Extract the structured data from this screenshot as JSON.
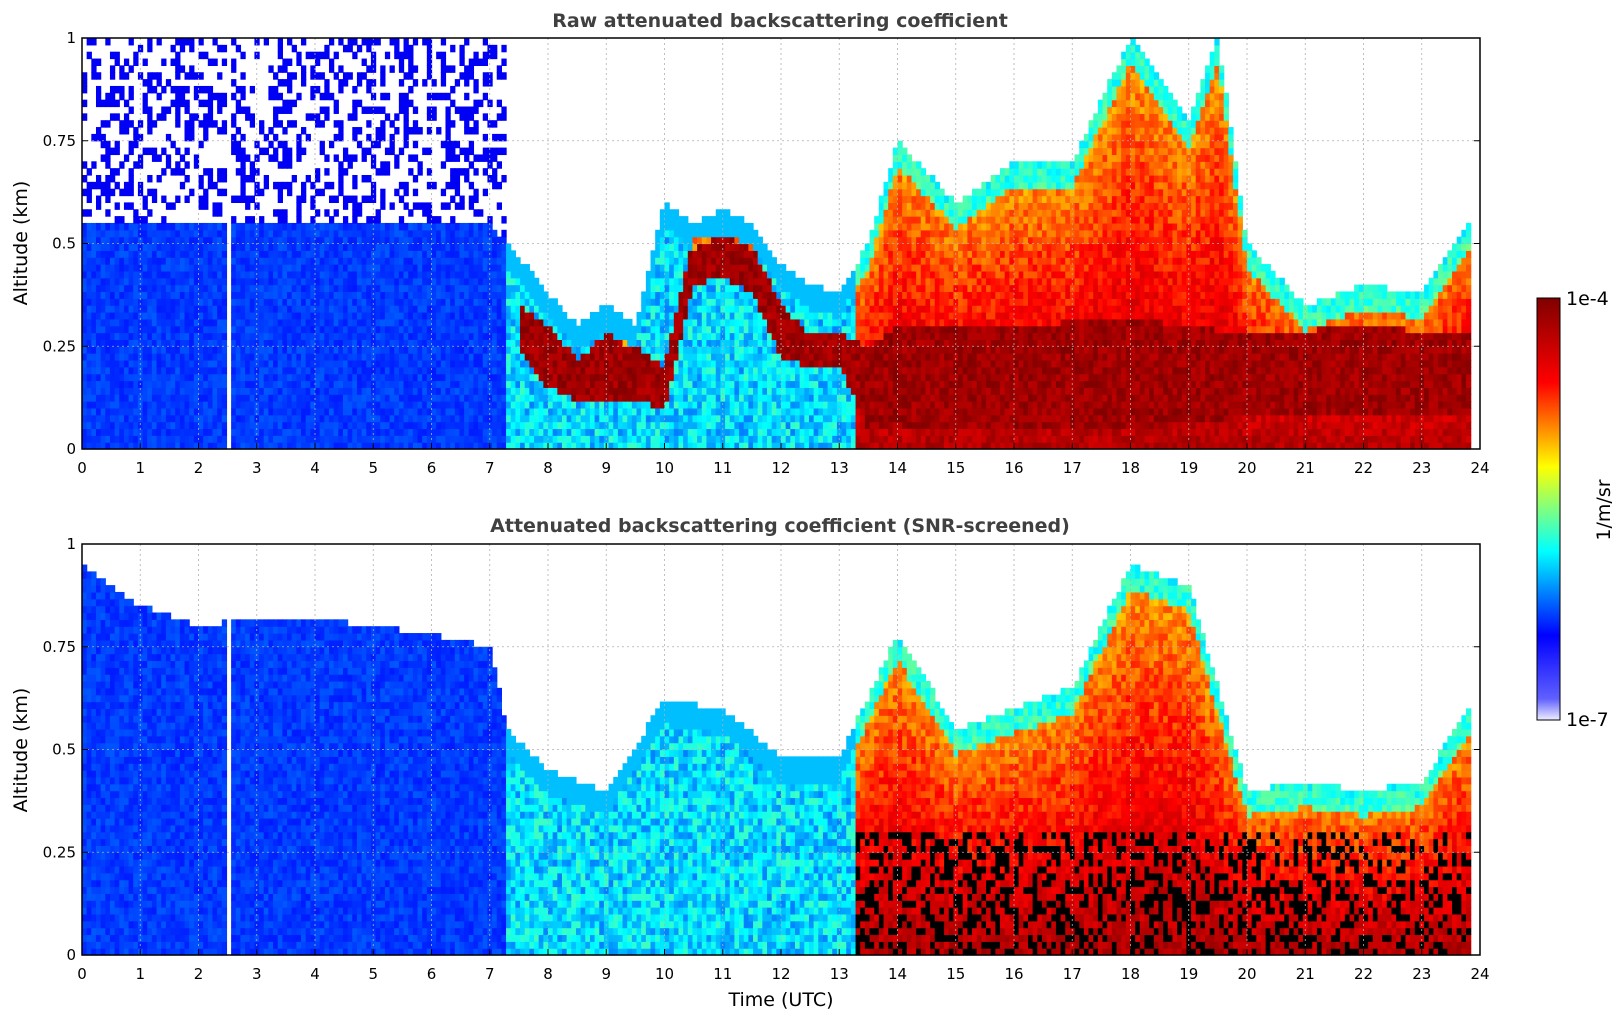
{
  "colormap": {
    "name": "jet",
    "stops": [
      "#00008f",
      "#0000ff",
      "#00ffff",
      "#ffff00",
      "#ff0000",
      "#800000"
    ],
    "low_end": "#eeeeff",
    "screened_color": "#000000",
    "background": "#ffffff"
  },
  "shared_axes": {
    "xlabel": "Time (UTC)",
    "ylabel": "Altitude (km)",
    "xlim": [
      0,
      24
    ],
    "ylim": [
      0,
      1
    ],
    "x_ticks": [
      "0",
      "1",
      "2",
      "3",
      "4",
      "5",
      "6",
      "7",
      "8",
      "9",
      "10",
      "11",
      "12",
      "13",
      "14",
      "15",
      "16",
      "17",
      "18",
      "19",
      "20",
      "21",
      "22",
      "23",
      "24"
    ],
    "y_ticks": [
      "0",
      "0.25",
      "0.5",
      "0.75",
      "1"
    ],
    "grid": true
  },
  "colorbar": {
    "label": "1/m/sr",
    "min_label": "1e-7",
    "max_label": "1e-4",
    "scale": "log",
    "range": [
      1e-07,
      0.0001
    ]
  },
  "chart_data": [
    {
      "type": "heatmap",
      "title": "Raw attenuated backscattering coefficient",
      "x_unit": "hour UTC",
      "y_unit": "km",
      "data_gap_hours": [
        2.45,
        2.55
      ],
      "layer_top_km": {
        "time": [
          0,
          1,
          2,
          3,
          4,
          5,
          6,
          7,
          7.3,
          8,
          8.5,
          9,
          9.5,
          10,
          10.5,
          11,
          11.5,
          12,
          12.5,
          13,
          13.5,
          14,
          15,
          16,
          17,
          18,
          18.5,
          19,
          19.5,
          20,
          21,
          22,
          23,
          23.8
        ],
        "value": [
          0.55,
          0.55,
          0.55,
          0.55,
          0.55,
          0.55,
          0.55,
          0.55,
          0.5,
          0.38,
          0.3,
          0.35,
          0.3,
          0.6,
          0.55,
          0.58,
          0.55,
          0.45,
          0.4,
          0.38,
          0.5,
          0.75,
          0.6,
          0.7,
          0.7,
          1.0,
          0.9,
          0.8,
          1.0,
          0.5,
          0.35,
          0.4,
          0.38,
          0.55
        ]
      },
      "strong_layer_band_km": {
        "time": [
          7.5,
          8,
          8.5,
          9,
          9.5,
          10,
          10.5,
          11,
          11.5,
          12,
          12.5,
          13,
          13.5,
          14,
          16,
          18,
          20,
          22,
          23.8
        ],
        "top": [
          0.35,
          0.3,
          0.22,
          0.28,
          0.25,
          0.2,
          0.52,
          0.52,
          0.5,
          0.35,
          0.28,
          0.28,
          0.25,
          0.3,
          0.3,
          0.32,
          0.28,
          0.3,
          0.28
        ],
        "bottom": [
          0.25,
          0.15,
          0.12,
          0.12,
          0.12,
          0.1,
          0.4,
          0.42,
          0.38,
          0.22,
          0.2,
          0.2,
          0.05,
          0.05,
          0.05,
          0.05,
          0.08,
          0.08,
          0.08
        ]
      }
    },
    {
      "type": "heatmap",
      "title": "Attenuated backscattering coefficient (SNR-screened)",
      "x_unit": "hour UTC",
      "y_unit": "km",
      "data_gap_hours": [
        2.45,
        2.55
      ],
      "screened_above_km": {
        "time": [
          0,
          1,
          2,
          3,
          4,
          5,
          6,
          7,
          7.3,
          8,
          9,
          10,
          11,
          12,
          13,
          14,
          15,
          16,
          17,
          18,
          19,
          20,
          21,
          22,
          23,
          23.8
        ],
        "value": [
          0.95,
          0.85,
          0.8,
          0.82,
          0.82,
          0.8,
          0.78,
          0.75,
          0.55,
          0.45,
          0.4,
          0.62,
          0.6,
          0.48,
          0.48,
          0.78,
          0.55,
          0.6,
          0.65,
          0.95,
          0.9,
          0.4,
          0.42,
          0.4,
          0.42,
          0.6
        ]
      }
    }
  ]
}
